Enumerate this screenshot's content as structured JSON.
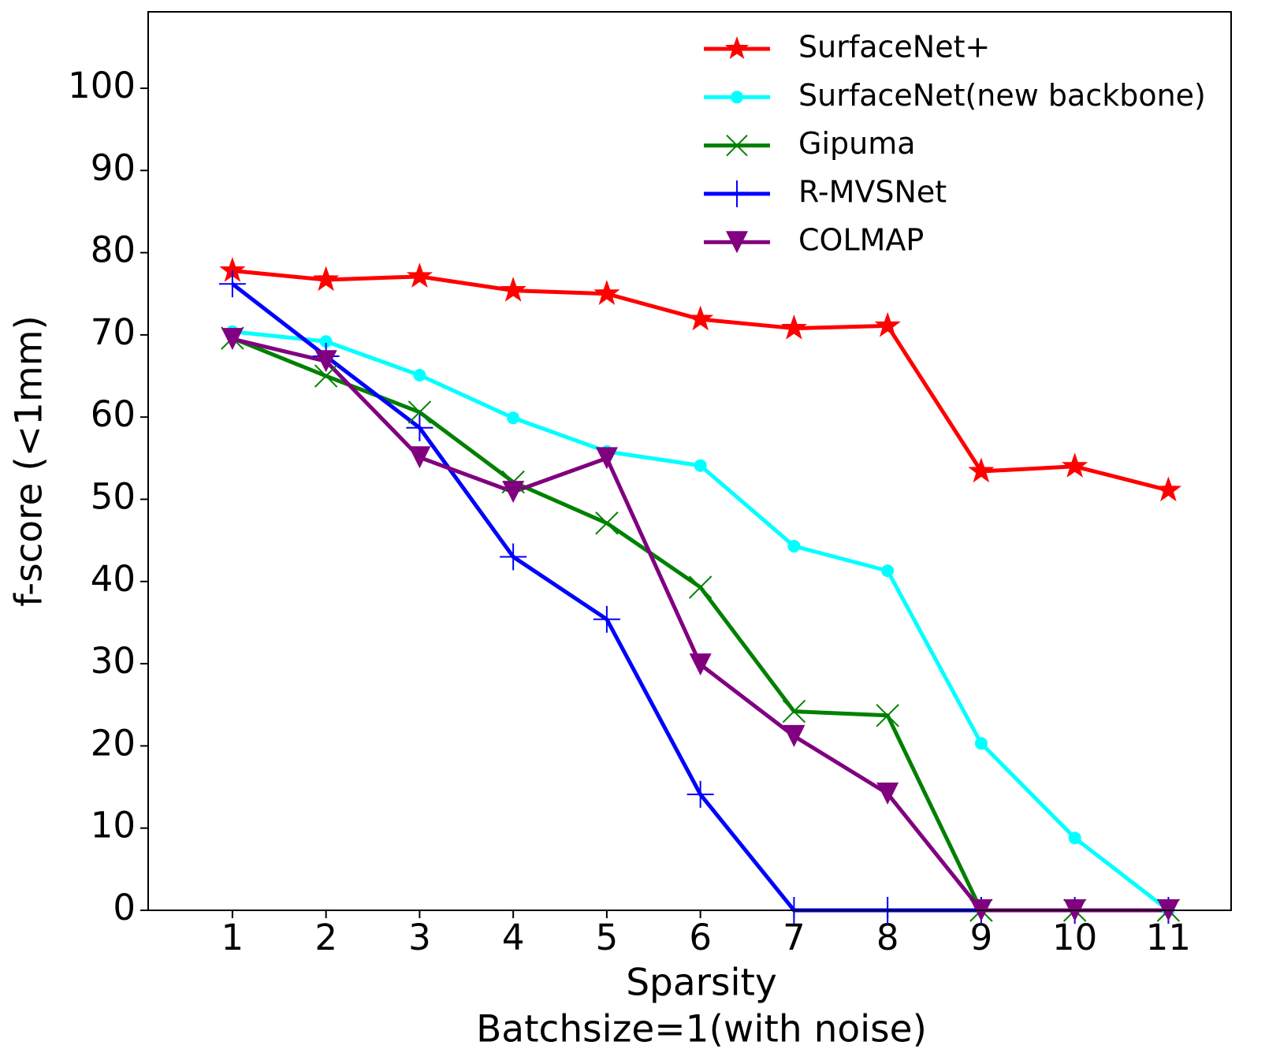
{
  "chart_data": {
    "type": "line",
    "xlabel": [
      "Sparsity",
      "Batchsize=1(with noise)"
    ],
    "ylabel": "f-score (<1mm)",
    "x": [
      1,
      2,
      3,
      4,
      5,
      6,
      7,
      8,
      9,
      10,
      11
    ],
    "xlim": [
      0.1,
      11.67
    ],
    "xticks": [
      1,
      2,
      3,
      4,
      5,
      6,
      7,
      8,
      9,
      10,
      11
    ],
    "ylim": [
      0,
      109.3
    ],
    "yticks": [
      0,
      10,
      20,
      30,
      40,
      50,
      60,
      70,
      80,
      90,
      100
    ],
    "grid": false,
    "legend": "upper right",
    "series": [
      {
        "name": "SurfaceNet+",
        "color": "#ff0000",
        "marker": "star",
        "values": [
          77.8,
          76.7,
          77.1,
          75.4,
          75.0,
          71.9,
          70.8,
          71.1,
          53.4,
          54.0,
          51.1
        ]
      },
      {
        "name": "SurfaceNet(new backbone)",
        "color": "#00ffff",
        "marker": "circle",
        "values": [
          70.4,
          69.2,
          65.1,
          59.9,
          55.8,
          54.1,
          44.3,
          41.3,
          20.3,
          8.8,
          0
        ]
      },
      {
        "name": "Gipuma",
        "color": "#008000",
        "marker": "x",
        "values": [
          69.6,
          65.0,
          60.6,
          52.1,
          47.1,
          39.3,
          24.2,
          23.7,
          0,
          0,
          0
        ]
      },
      {
        "name": "R-MVSNet",
        "color": "#0000ff",
        "marker": "plus",
        "values": [
          76.2,
          67.4,
          58.7,
          43.0,
          35.4,
          14.1,
          0,
          0,
          0,
          0,
          0
        ]
      },
      {
        "name": "COLMAP",
        "color": "#800080",
        "marker": "triangle-down",
        "values": [
          69.5,
          66.8,
          55.1,
          50.9,
          55.0,
          29.9,
          21.2,
          14.2,
          0,
          0,
          0
        ]
      }
    ]
  }
}
